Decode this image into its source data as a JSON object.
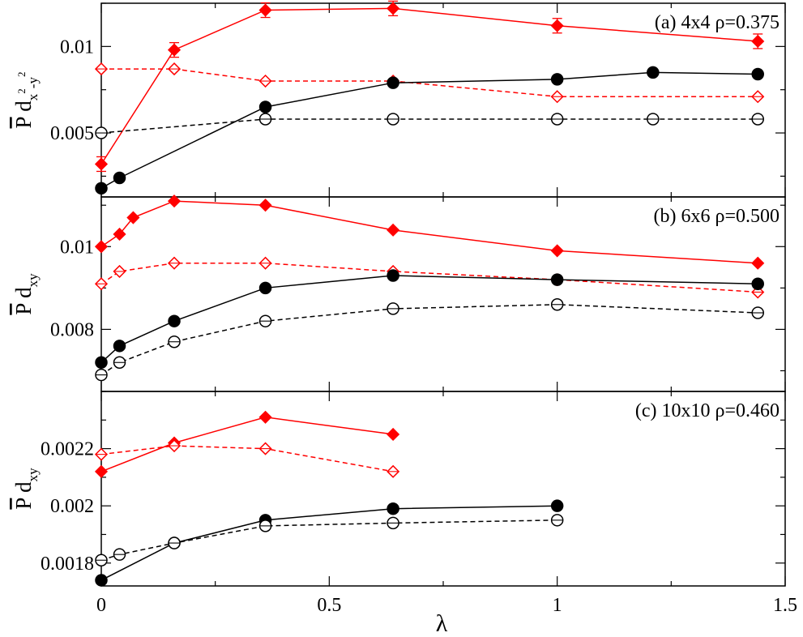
{
  "chart_data": [
    {
      "type": "line",
      "panel": "a",
      "title": "(a) 4x4 ρ=0.375",
      "ylabel": {
        "base": "P",
        "sub": "x",
        "sup1": "2",
        "mid": "-y",
        "sup2": "2",
        "prefix": "d"
      },
      "ylim": [
        0.0013,
        0.0125
      ],
      "yticks": [
        0.005,
        0.01
      ],
      "yticklabels": [
        "0.005",
        "0.01"
      ],
      "series": [
        {
          "color": "#ff0000",
          "marker": "diamond-filled",
          "dash": "solid",
          "errorbars": true,
          "x": [
            0,
            0.16,
            0.36,
            0.64,
            1.0,
            1.44
          ],
          "y": [
            0.0032,
            0.0098,
            0.0121,
            0.0122,
            0.0112,
            0.0103
          ]
        },
        {
          "color": "#ff0000",
          "marker": "diamond-open",
          "dash": "dashed",
          "x": [
            0,
            0.16,
            0.36,
            0.64,
            1.0,
            1.44
          ],
          "y": [
            0.0087,
            0.0087,
            0.008,
            0.008,
            0.0071,
            0.0071
          ]
        },
        {
          "color": "#000000",
          "marker": "circle-filled",
          "dash": "solid",
          "x": [
            0,
            0.04,
            0.36,
            0.64,
            1.0,
            1.21,
            1.44
          ],
          "y": [
            0.0018,
            0.0024,
            0.0065,
            0.0079,
            0.0081,
            0.0085,
            0.0084
          ]
        },
        {
          "color": "#000000",
          "marker": "circle-open",
          "dash": "dashed",
          "x": [
            0,
            0.36,
            0.64,
            1.0,
            1.21,
            1.44
          ],
          "y": [
            0.005,
            0.0058,
            0.0058,
            0.0058,
            0.0058,
            0.0058
          ]
        }
      ]
    },
    {
      "type": "line",
      "panel": "b",
      "title": "(b) 6x6 ρ=0.500",
      "ylabel": {
        "base": "P",
        "prefix": "d",
        "sub": "xy"
      },
      "ylim": [
        0.0065,
        0.0112
      ],
      "yticks": [
        0.008,
        0.01
      ],
      "yticklabels": [
        "0.008",
        "0.01"
      ],
      "series": [
        {
          "color": "#ff0000",
          "marker": "diamond-filled",
          "dash": "solid",
          "x": [
            0,
            0.04,
            0.07,
            0.16,
            0.36,
            0.64,
            1.0,
            1.44
          ],
          "y": [
            0.01,
            0.0103,
            0.0107,
            0.0111,
            0.011,
            0.0104,
            0.0099,
            0.0096
          ]
        },
        {
          "color": "#ff0000",
          "marker": "diamond-open",
          "dash": "dashed",
          "x": [
            0,
            0.04,
            0.16,
            0.36,
            0.64,
            1.0,
            1.44
          ],
          "y": [
            0.0091,
            0.0094,
            0.0096,
            0.0096,
            0.0094,
            0.0092,
            0.0089
          ]
        },
        {
          "color": "#000000",
          "marker": "circle-filled",
          "dash": "solid",
          "x": [
            0,
            0.04,
            0.16,
            0.36,
            0.64,
            1.0,
            1.44
          ],
          "y": [
            0.0072,
            0.0076,
            0.0082,
            0.009,
            0.0093,
            0.0092,
            0.0091
          ]
        },
        {
          "color": "#000000",
          "marker": "circle-open",
          "dash": "dashed",
          "x": [
            0,
            0.04,
            0.16,
            0.36,
            0.64,
            1.0,
            1.44
          ],
          "y": [
            0.0069,
            0.0072,
            0.0077,
            0.0082,
            0.0085,
            0.0086,
            0.0084
          ]
        }
      ]
    },
    {
      "type": "line",
      "panel": "c",
      "title": "(c) 10x10 ρ=0.460",
      "ylabel": {
        "base": "P",
        "prefix": "d",
        "sub": "xy"
      },
      "ylim": [
        0.00172,
        0.0024
      ],
      "yticks": [
        0.0018,
        0.002,
        0.0022
      ],
      "yticklabels": [
        "0.0018",
        "0.002",
        "0.0022"
      ],
      "series": [
        {
          "color": "#ff0000",
          "marker": "diamond-filled",
          "dash": "solid",
          "x": [
            0,
            0.16,
            0.36,
            0.64
          ],
          "y": [
            0.00212,
            0.00222,
            0.00231,
            0.00225
          ]
        },
        {
          "color": "#ff0000",
          "marker": "diamond-open",
          "dash": "dashed",
          "x": [
            0,
            0.16,
            0.36,
            0.64
          ],
          "y": [
            0.00218,
            0.00221,
            0.0022,
            0.00212
          ]
        },
        {
          "color": "#000000",
          "marker": "circle-filled",
          "dash": "solid",
          "x": [
            0,
            0.16,
            0.36,
            0.64,
            1.0
          ],
          "y": [
            0.00174,
            0.00187,
            0.00195,
            0.00199,
            0.002
          ]
        },
        {
          "color": "#000000",
          "marker": "circle-open",
          "dash": "dashed",
          "x": [
            0,
            0.04,
            0.16,
            0.36,
            0.64,
            1.0
          ],
          "y": [
            0.00181,
            0.00183,
            0.00187,
            0.00193,
            0.00194,
            0.00195
          ]
        }
      ]
    }
  ],
  "x_axis": {
    "label": "λ",
    "xlim": [
      0,
      1.5
    ],
    "ticks": [
      0,
      0.5,
      1,
      1.5
    ],
    "ticklabels": [
      "0",
      "0.5",
      "1",
      "1.5"
    ]
  },
  "grid": false
}
